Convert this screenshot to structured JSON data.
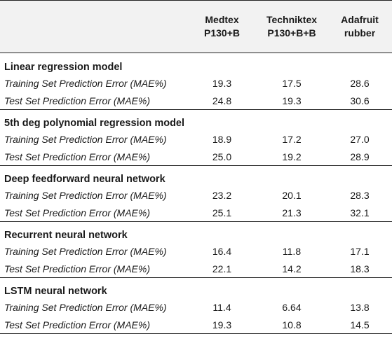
{
  "table": {
    "columns": [
      "Medtex\nP130+B",
      "Techniktex\nP130+B+B",
      "Adafruit\nrubber"
    ],
    "column_lines": [
      [
        "Medtex",
        "P130+B"
      ],
      [
        "Techniktex",
        "P130+B+B"
      ],
      [
        "Adafruit",
        "rubber"
      ]
    ],
    "sections": [
      {
        "title": "Linear regression model",
        "rows": [
          {
            "label": "Training Set Prediction Error (MAE%)",
            "values": [
              "19.3",
              "17.5",
              "28.6"
            ]
          },
          {
            "label": "Test Set Prediction Error (MAE%)",
            "values": [
              "24.8",
              "19.3",
              "30.6"
            ]
          }
        ]
      },
      {
        "title": "5th deg polynomial regression model",
        "rows": [
          {
            "label": "Training Set Prediction Error (MAE%)",
            "values": [
              "18.9",
              "17.2",
              "27.0"
            ]
          },
          {
            "label": "Test Set Prediction Error (MAE%)",
            "values": [
              "25.0",
              "19.2",
              "28.9"
            ]
          }
        ]
      },
      {
        "title": "Deep feedforward neural network",
        "rows": [
          {
            "label": "Training Set Prediction Error (MAE%)",
            "values": [
              "23.2",
              "20.1",
              "28.3"
            ]
          },
          {
            "label": "Test Set Prediction Error (MAE%)",
            "values": [
              "25.1",
              "21.3",
              "32.1"
            ]
          }
        ]
      },
      {
        "title": "Recurrent neural network",
        "rows": [
          {
            "label": "Training Set Prediction Error (MAE%)",
            "values": [
              "16.4",
              "11.8",
              "17.1"
            ]
          },
          {
            "label": "Test Set Prediction Error (MAE%)",
            "values": [
              "22.1",
              "14.2",
              "18.3"
            ]
          }
        ]
      },
      {
        "title": "LSTM neural network",
        "rows": [
          {
            "label": "Training Set Prediction Error (MAE%)",
            "values": [
              "11.4",
              "6.64",
              "13.8"
            ]
          },
          {
            "label": "Test Set Prediction Error (MAE%)",
            "values": [
              "19.3",
              "10.8",
              "14.5"
            ]
          }
        ]
      }
    ]
  }
}
